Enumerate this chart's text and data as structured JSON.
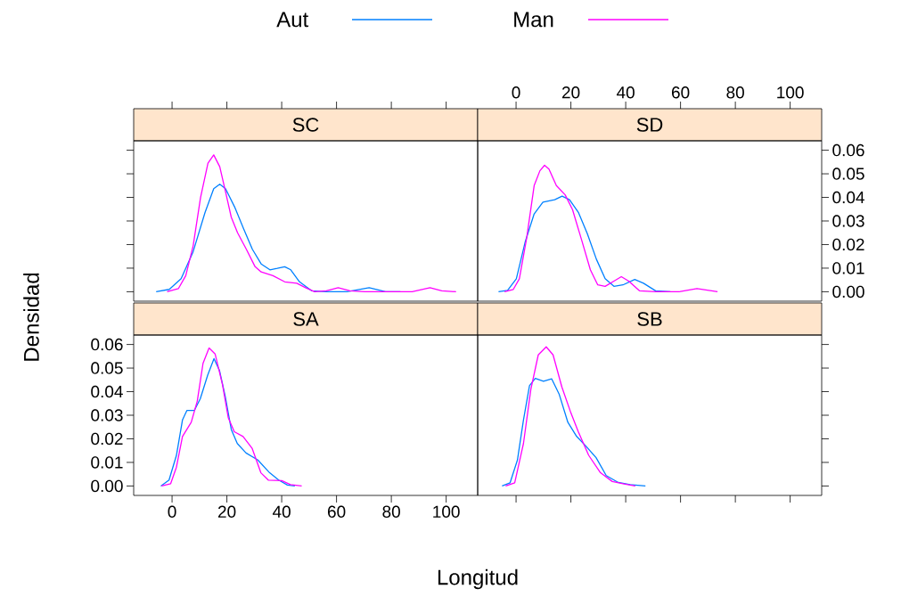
{
  "chart_data": [
    {
      "type": "line",
      "title": "SC",
      "legend": "top",
      "xlim": [
        -14,
        111.5
      ],
      "ylim": [
        -0.004,
        0.064
      ],
      "xticks": [
        0,
        20,
        40,
        60,
        80,
        100
      ],
      "yticks": [
        {
          "value": 0,
          "label": null
        },
        {
          "value": 0.01,
          "label": null
        },
        {
          "value": 0.02,
          "label": null
        },
        {
          "value": 0.03,
          "label": null
        },
        {
          "value": 0.04,
          "label": null
        },
        {
          "value": 0.05,
          "label": null
        },
        {
          "value": 0.06,
          "label": null
        }
      ],
      "tick_labels": false,
      "series": [
        {
          "name": "Aut",
          "color": "#0080ff",
          "x": [
            -5.8,
            -1,
            3.3,
            7.7,
            12,
            15.2,
            17.4,
            19.5,
            22.8,
            26,
            29.3,
            32.5,
            35.7,
            38.4,
            41.1,
            43.3,
            46.5,
            50.9,
            56.3,
            63.8,
            71.9,
            77.9,
            83.3
          ],
          "values": [
            0,
            0.001,
            0.0055,
            0.017,
            0.0335,
            0.0437,
            0.0456,
            0.0437,
            0.036,
            0.027,
            0.018,
            0.0118,
            0.0093,
            0.0099,
            0.0106,
            0.0093,
            0.0042,
            0.0004,
            0,
            0,
            0.0017,
            0,
            0
          ]
        },
        {
          "name": "Man",
          "color": "#ff00ff",
          "x": [
            -1.8,
            2.3,
            5,
            7.7,
            10.4,
            13.1,
            15.2,
            17.4,
            19.5,
            21.6,
            23.9,
            27.1,
            30.3,
            32.5,
            36.8,
            41.1,
            45.5,
            48.7,
            52,
            56.3,
            60.6,
            64.9,
            70.3,
            87.6,
            94.1,
            98.4,
            103.6
          ],
          "values": [
            0,
            0.0013,
            0.0068,
            0.0195,
            0.04,
            0.0545,
            0.058,
            0.053,
            0.0424,
            0.0316,
            0.025,
            0.018,
            0.0106,
            0.0084,
            0.0068,
            0.0042,
            0.0036,
            0.0017,
            0,
            0.0004,
            0.0017,
            0.0004,
            0,
            0,
            0.0017,
            0.0004,
            0
          ]
        }
      ]
    },
    {
      "type": "line",
      "title": "SD",
      "xlim": [
        -14,
        111.5
      ],
      "ylim": [
        -0.004,
        0.064
      ],
      "xticks": [
        0,
        20,
        40,
        60,
        80,
        100
      ],
      "yticks": [
        {
          "value": 0,
          "label": "0.00"
        },
        {
          "value": 0.01,
          "label": "0.01"
        },
        {
          "value": 0.02,
          "label": "0.02"
        },
        {
          "value": 0.03,
          "label": "0.03"
        },
        {
          "value": 0.04,
          "label": "0.04"
        },
        {
          "value": 0.05,
          "label": "0.05"
        },
        {
          "value": 0.06,
          "label": "0.06"
        }
      ],
      "series": [
        {
          "color": "#0080ff",
          "x": [
            -6.4,
            -3.1,
            0.1,
            3.3,
            6.6,
            9.8,
            14.1,
            16.8,
            19.5,
            22.8,
            26,
            29.3,
            32.5,
            35.7,
            39,
            43.3,
            46.5,
            50.9,
            56.3
          ],
          "values": [
            0,
            0.0006,
            0.0055,
            0.021,
            0.033,
            0.038,
            0.039,
            0.0405,
            0.039,
            0.0335,
            0.0246,
            0.0138,
            0.0055,
            0.0023,
            0.0029,
            0.0052,
            0.0036,
            0.0004,
            0
          ]
        },
        {
          "color": "#ff00ff",
          "x": [
            -4.2,
            -1,
            1.2,
            3.9,
            6.6,
            8.7,
            10.4,
            12,
            14.7,
            17.9,
            20.6,
            23.9,
            27.1,
            29.8,
            32.5,
            35.7,
            38.4,
            41.1,
            45,
            50.9,
            59.5,
            66,
            73.5
          ],
          "values": [
            0,
            0.001,
            0.0055,
            0.023,
            0.045,
            0.0513,
            0.0536,
            0.052,
            0.045,
            0.0411,
            0.0348,
            0.022,
            0.0093,
            0.0029,
            0.0023,
            0.0045,
            0.0064,
            0.0045,
            0.0004,
            0,
            0,
            0.0013,
            0
          ]
        }
      ]
    },
    {
      "type": "line",
      "title": "SA",
      "xlabel": "Longitud",
      "ylabel": "Densidad",
      "xlim": [
        -14,
        111.5
      ],
      "ylim": [
        -0.004,
        0.064
      ],
      "xticks": [
        0,
        20,
        40,
        60,
        80,
        100
      ],
      "yticks": [
        {
          "value": 0,
          "label": "0.00"
        },
        {
          "value": 0.01,
          "label": "0.01"
        },
        {
          "value": 0.02,
          "label": "0.02"
        },
        {
          "value": 0.03,
          "label": "0.03"
        },
        {
          "value": 0.04,
          "label": "0.04"
        },
        {
          "value": 0.05,
          "label": "0.05"
        },
        {
          "value": 0.06,
          "label": "0.06"
        }
      ],
      "series": [
        {
          "color": "#0080ff",
          "x": [
            -4.1,
            -1.1,
            1.6,
            3.8,
            5.4,
            8.1,
            10.3,
            13,
            15.3,
            17.3,
            19.4,
            21.6,
            23.8,
            27,
            31.3,
            35.6,
            38.9,
            42.1,
            44.8
          ],
          "values": [
            0,
            0.0025,
            0.013,
            0.028,
            0.032,
            0.032,
            0.037,
            0.047,
            0.054,
            0.049,
            0.038,
            0.024,
            0.018,
            0.014,
            0.011,
            0.0056,
            0.0025,
            0.0004,
            0
          ]
        },
        {
          "color": "#ff00ff",
          "x": [
            -3.8,
            -0.5,
            1.6,
            3.8,
            7,
            9.2,
            11.3,
            13.5,
            15.7,
            18.4,
            20.5,
            22.7,
            25.9,
            29.2,
            32.4,
            35.1,
            40,
            43.2,
            47.3
          ],
          "values": [
            0,
            0.001,
            0.008,
            0.021,
            0.027,
            0.036,
            0.052,
            0.0585,
            0.056,
            0.043,
            0.029,
            0.023,
            0.021,
            0.016,
            0.0056,
            0.0025,
            0.0023,
            0.0006,
            0
          ]
        }
      ]
    },
    {
      "type": "line",
      "title": "SB",
      "xlim": [
        -14,
        111.5
      ],
      "ylim": [
        -0.004,
        0.064
      ],
      "xticks": [
        0,
        20,
        40,
        60,
        80,
        100
      ],
      "yticks": [
        {
          "value": 0,
          "label": null
        },
        {
          "value": 0.01,
          "label": null
        },
        {
          "value": 0.02,
          "label": null
        },
        {
          "value": 0.03,
          "label": null
        },
        {
          "value": 0.04,
          "label": null
        },
        {
          "value": 0.05,
          "label": null
        },
        {
          "value": 0.06,
          "label": null
        }
      ],
      "tick_labels": false,
      "series": [
        {
          "color": "#0080ff",
          "x": [
            -5.1,
            -2.2,
            0.5,
            2.7,
            4.9,
            7,
            10,
            13,
            15.7,
            18.9,
            22.1,
            25.4,
            29.2,
            32.9,
            37.3,
            41.6,
            47.2
          ],
          "values": [
            0,
            0.0013,
            0.011,
            0.028,
            0.0425,
            0.0456,
            0.0444,
            0.0454,
            0.039,
            0.027,
            0.021,
            0.017,
            0.012,
            0.0044,
            0.0015,
            0.0006,
            0
          ]
        },
        {
          "color": "#ff00ff",
          "x": [
            -3.8,
            -0.5,
            2.7,
            5.4,
            8.1,
            11,
            13.5,
            16.7,
            20,
            22.7,
            26.5,
            30.8,
            35.1,
            39.4,
            43.5
          ],
          "values": [
            0,
            0.0013,
            0.018,
            0.041,
            0.0556,
            0.059,
            0.0556,
            0.042,
            0.031,
            0.023,
            0.013,
            0.0056,
            0.0019,
            0.0009,
            0
          ]
        }
      ]
    }
  ]
}
